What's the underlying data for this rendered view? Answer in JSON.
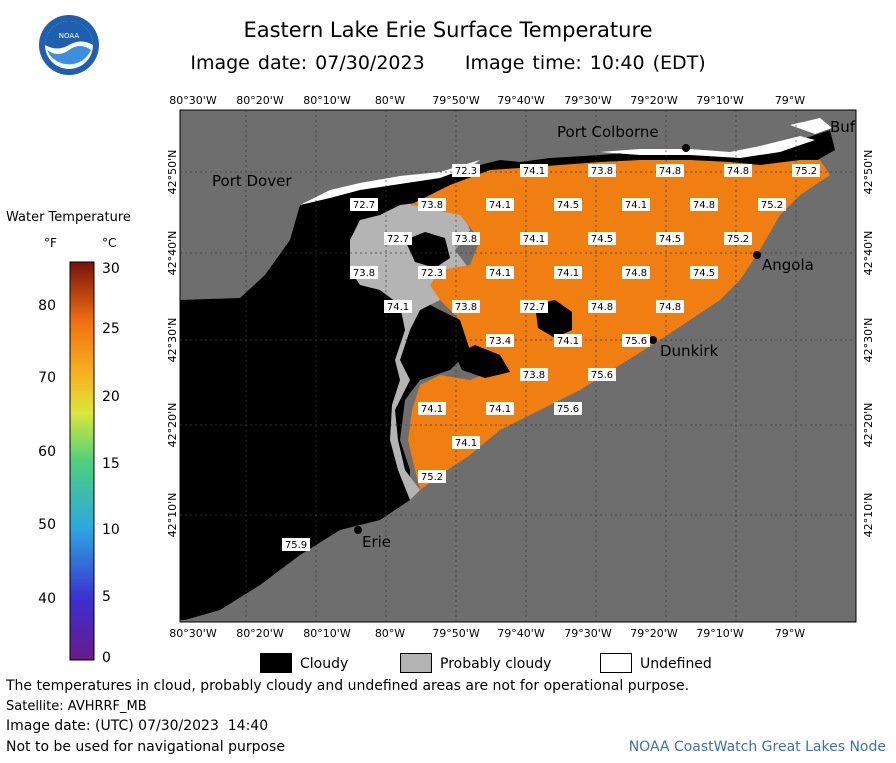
{
  "header": {
    "title": "Eastern Lake Erie Surface Temperature",
    "subtitle": "Image date: 07/30/2023     Image time: 10:40 (EDT)",
    "logo_text": "NOAA"
  },
  "map": {
    "top_ticks": [
      "80°30'W",
      "80°20'W",
      "80°10'W",
      "80°W",
      "79°50'W",
      "79°40'W",
      "79°30'W",
      "79°20'W",
      "79°10'W",
      "79°W"
    ],
    "bottom_ticks": [
      "80°30'W",
      "80°20'W",
      "80°10'W",
      "80°W",
      "79°50'W",
      "79°40'W",
      "79°30'W",
      "79°20'W",
      "79°10'W",
      "79°W"
    ],
    "left_ticks": [
      "42°50'N",
      "42°40'N",
      "42°30'N",
      "42°20'N",
      "42°10'N"
    ],
    "right_ticks": [
      "42°50'N",
      "42°40'N",
      "42°30'N",
      "42°20'N",
      "42°10'N"
    ],
    "places": {
      "port_colborne": "Port Colborne",
      "port_dover": "Port Dover",
      "angola": "Angola",
      "dunkirk": "Dunkirk",
      "erie": "Erie",
      "buffalo": "Buf"
    },
    "temperatures": [
      "72.3",
      "74.1",
      "73.8",
      "74.8",
      "74.8",
      "75.2",
      "72.7",
      "73.8",
      "74.1",
      "74.5",
      "74.1",
      "74.8",
      "75.2",
      "72.7",
      "73.8",
      "74.1",
      "74.5",
      "74.5",
      "75.2",
      "73.8",
      "72.3",
      "74.1",
      "74.1",
      "74.8",
      "74.5",
      "74.1",
      "73.8",
      "72.7",
      "74.8",
      "74.8",
      "73.4",
      "74.1",
      "75.6",
      "73.8",
      "75.6",
      "74.1",
      "74.1",
      "75.6",
      "74.1",
      "75.2",
      "75.9"
    ],
    "colors": {
      "land": "#6e6e6e",
      "cloudy": "#000000",
      "probably_cloudy": "#b4b4b4",
      "undefined": "#ffffff",
      "water": "#f07e10"
    }
  },
  "legend": {
    "title": "Water Temperature",
    "unit_f": "°F",
    "unit_c": "°C",
    "f_ticks": [
      "80",
      "70",
      "60",
      "50",
      "40"
    ],
    "c_ticks": [
      "30",
      "25",
      "20",
      "15",
      "10",
      "5",
      "0"
    ]
  },
  "key": {
    "cloudy": "Cloudy",
    "probably_cloudy": "Probably cloudy",
    "undefined": "Undefined"
  },
  "footer": {
    "note": "The temperatures in cloud, probably cloudy and undefined areas are not for operational purpose.",
    "satellite": "Satellite: AVHRRF_MB",
    "image_date": "Image date: (UTC) 07/30/2023  14:40",
    "nav": "Not to be used for navigational purpose",
    "credit": "NOAA CoastWatch Great Lakes Node"
  }
}
